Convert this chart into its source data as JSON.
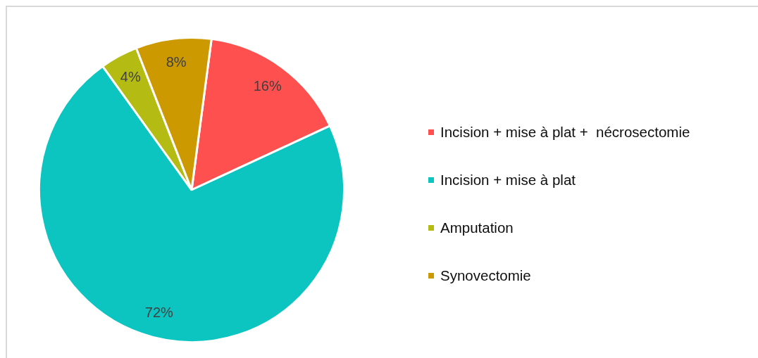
{
  "chart_data": {
    "type": "pie",
    "categories": [
      "Incision + mise à plat +  nécrosectomie",
      "Incision + mise à plat",
      "Amputation",
      "Synovectomie"
    ],
    "values": [
      16,
      72,
      4,
      8
    ],
    "colors": [
      "#ff5050",
      "#0cc5c0",
      "#b4bc14",
      "#cc9900"
    ],
    "value_labels": [
      "16%",
      "72%",
      "4%",
      "8%"
    ],
    "legend": "right"
  }
}
